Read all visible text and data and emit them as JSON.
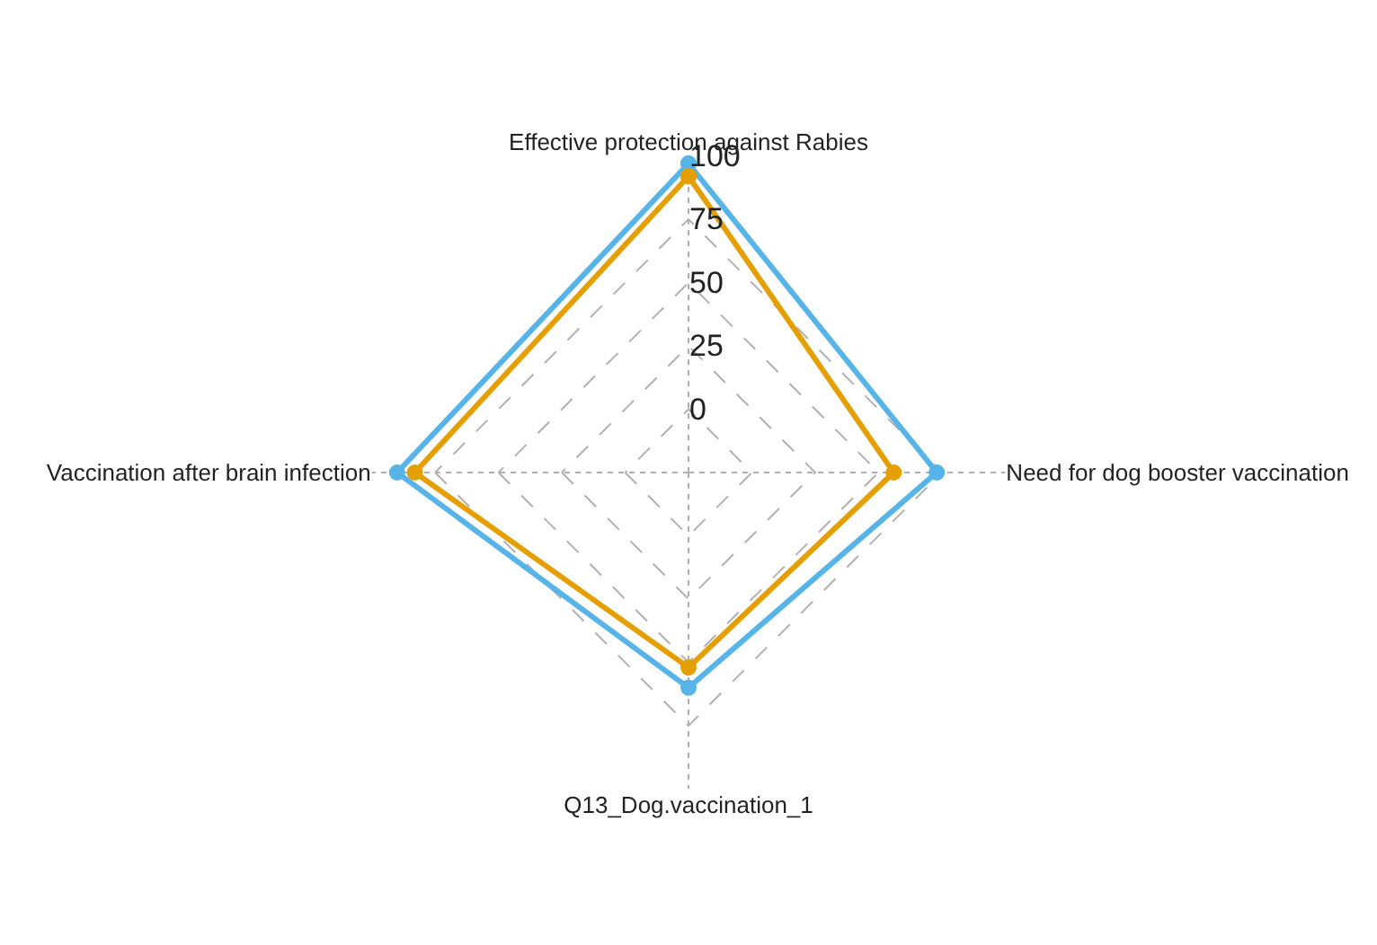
{
  "chart_data": {
    "type": "radar",
    "categories": [
      "Effective protection against Rabies",
      "Need for dog booster vaccination",
      "Q13_Dog.vaccination_1",
      "Vaccination after brain infection"
    ],
    "series": [
      {
        "color": "#56b4e9",
        "values": [
          97,
          73,
          60,
          90
        ]
      },
      {
        "color": "#e69f00",
        "values": [
          92,
          56,
          52,
          83
        ]
      }
    ],
    "ylim": [
      -25,
      100
    ],
    "yticks": [
      0,
      25,
      50,
      75,
      100
    ],
    "grid": true,
    "marker": "circle",
    "line_style": "solid"
  }
}
